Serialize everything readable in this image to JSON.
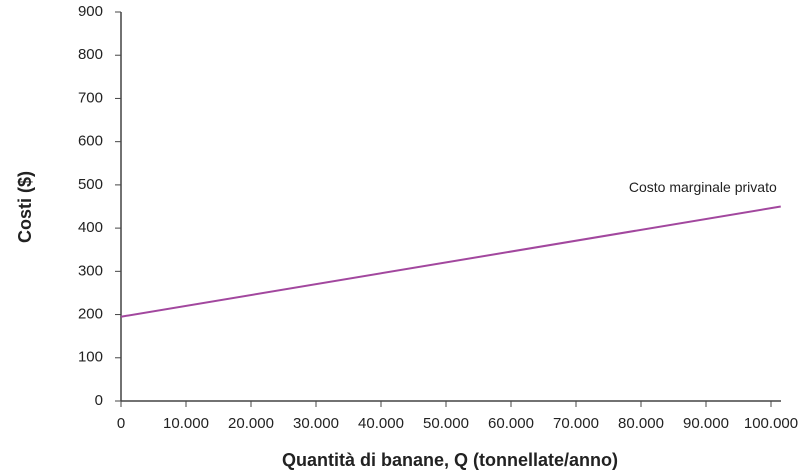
{
  "chart_data": {
    "type": "line",
    "xlabel": "Quantità di banane, Q (tonnellate/anno)",
    "ylabel": "Costi ($)",
    "x": [
      0,
      101500
    ],
    "series": [
      {
        "name": "Costo marginale privato",
        "color": "#a2479e",
        "values": [
          195,
          450
        ]
      }
    ],
    "xlim": [
      0,
      101500
    ],
    "ylim": [
      0,
      900
    ],
    "xticks": [
      0,
      {
        "value": 10000,
        "label": "10.000"
      },
      {
        "value": 20000,
        "label": "20.000"
      },
      {
        "value": 30000,
        "label": "30.000"
      },
      {
        "value": 40000,
        "label": "40.000"
      },
      {
        "value": 50000,
        "label": "50.000"
      },
      {
        "value": 60000,
        "label": "60.000"
      },
      {
        "value": 70000,
        "label": "70.000"
      },
      {
        "value": 80000,
        "label": "80.000"
      },
      {
        "value": 90000,
        "label": "90.000"
      },
      {
        "value": 100000,
        "label": "100.000"
      }
    ],
    "yticks": [
      0,
      100,
      200,
      300,
      400,
      500,
      600,
      700,
      800,
      900
    ]
  }
}
